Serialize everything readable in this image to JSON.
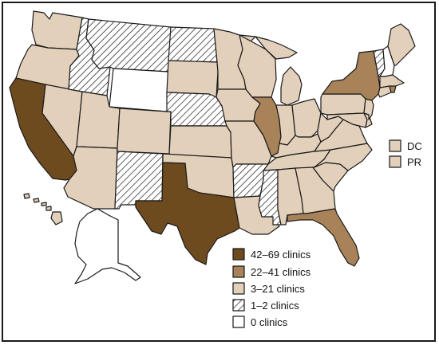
{
  "categories": {
    "c42_69": {
      "label": "42–69 clinics",
      "color": "#6e4a1f"
    },
    "c22_41": {
      "label": "22–41 clinics",
      "color": "#a88258"
    },
    "c3_21": {
      "label": "3–21 clinics",
      "color": "#e2d0bb"
    },
    "c1_2": {
      "label": "1–2 clinics",
      "pattern": "hatch"
    },
    "c0": {
      "label": "0 clinics",
      "color": "#ffffff"
    }
  },
  "legend_order": [
    "c42_69",
    "c22_41",
    "c3_21",
    "c1_2",
    "c0"
  ],
  "territories": [
    {
      "abbr": "DC",
      "category": "c3_21"
    },
    {
      "abbr": "PR",
      "category": "c3_21"
    }
  ],
  "states": {
    "WA": "c3_21",
    "OR": "c3_21",
    "CA": "c42_69",
    "NV": "c3_21",
    "ID": "c1_2",
    "MT": "c1_2",
    "WY": "c0",
    "UT": "c3_21",
    "AZ": "c3_21",
    "CO": "c3_21",
    "NM": "c1_2",
    "ND": "c1_2",
    "SD": "c3_21",
    "NE": "c1_2",
    "KS": "c3_21",
    "OK": "c3_21",
    "TX": "c42_69",
    "MN": "c3_21",
    "IA": "c3_21",
    "MO": "c3_21",
    "AR": "c1_2",
    "LA": "c3_21",
    "WI": "c3_21",
    "IL": "c22_41",
    "MS": "c1_2",
    "MI": "c3_21",
    "IN": "c3_21",
    "KY": "c3_21",
    "TN": "c3_21",
    "AL": "c3_21",
    "OH": "c3_21",
    "WV": "c3_21",
    "VA": "c3_21",
    "NC": "c3_21",
    "SC": "c3_21",
    "GA": "c3_21",
    "FL": "c22_41",
    "PA": "c3_21",
    "NY": "c22_41",
    "VT": "c1_2",
    "NH": "c0",
    "ME": "c3_21",
    "MA": "c3_21",
    "CT": "c3_21",
    "RI": "c22_41",
    "NJ": "c3_21",
    "DE": "c3_21",
    "MD": "c3_21",
    "AK": "c0",
    "HI": "c3_21"
  }
}
